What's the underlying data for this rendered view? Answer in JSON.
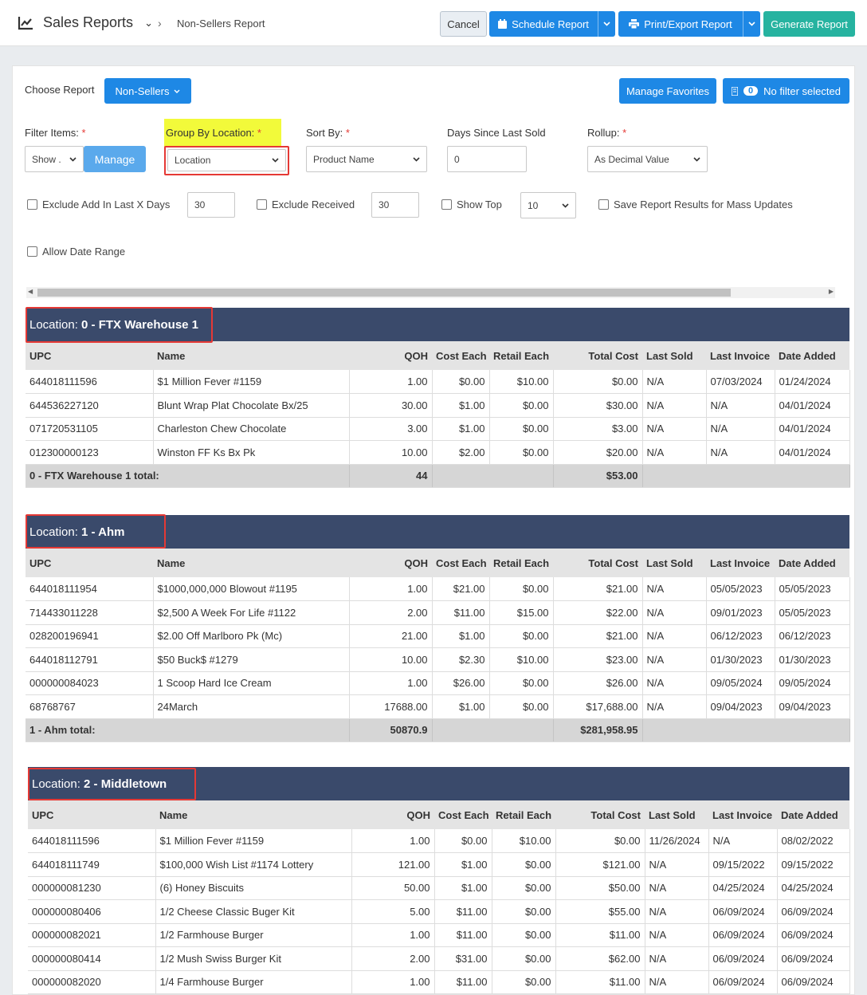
{
  "header": {
    "title": "Sales Reports",
    "breadcrumb": "Non-Sellers Report",
    "cancel": "Cancel",
    "schedule": "Schedule Report",
    "print": "Print/Export Report",
    "generate": "Generate Report"
  },
  "controls": {
    "choose_report_label": "Choose Report",
    "report_value": "Non-Sellers",
    "manage_favorites": "Manage Favorites",
    "filter_count": "0",
    "filter_text": "No filter selected",
    "filter_items_label": "Filter Items:",
    "filter_items_value": "Show .",
    "manage_button": "Manage",
    "group_by_label": "Group By Location:",
    "group_by_value": "Location",
    "sort_by_label": "Sort By:",
    "sort_by_value": "Product Name",
    "days_label": "Days Since Last Sold",
    "days_value": "0",
    "rollup_label": "Rollup:",
    "rollup_value": "As Decimal Value",
    "required_mark": "*",
    "exclude_add_label": "Exclude Add In Last X Days",
    "exclude_add_value": "30",
    "exclude_received_label": "Exclude Received",
    "exclude_received_value": "30",
    "show_top_label": "Show Top",
    "show_top_value": "10",
    "save_results_label": "Save Report Results for Mass Updates",
    "allow_date_range_label": "Allow Date Range"
  },
  "columns": [
    "UPC",
    "Name",
    "QOH",
    "Cost Each",
    "Retail Each",
    "Total Cost",
    "Last Sold",
    "Last Invoice",
    "Date Added"
  ],
  "groups": [
    {
      "prefix": "Location: ",
      "name": "0 - FTX Warehouse 1",
      "rows": [
        [
          "644018111596",
          "$1 Million Fever #1159",
          "1.00",
          "$0.00",
          "$10.00",
          "$0.00",
          "N/A",
          "07/03/2024",
          "01/24/2024"
        ],
        [
          "644536227120",
          "Blunt Wrap Plat Chocolate Bx/25",
          "30.00",
          "$1.00",
          "$0.00",
          "$30.00",
          "N/A",
          "N/A",
          "04/01/2024"
        ],
        [
          "071720531105",
          "Charleston Chew Chocolate",
          "3.00",
          "$1.00",
          "$0.00",
          "$3.00",
          "N/A",
          "N/A",
          "04/01/2024"
        ],
        [
          "012300000123",
          "Winston FF Ks Bx Pk",
          "10.00",
          "$2.00",
          "$0.00",
          "$20.00",
          "N/A",
          "N/A",
          "04/01/2024"
        ]
      ],
      "total_label": "0 - FTX Warehouse 1 total:",
      "total_qoh": "44",
      "total_cost": "$53.00"
    },
    {
      "prefix": "Location: ",
      "name": "1 - Ahm",
      "rows": [
        [
          "644018111954",
          "$1000,000,000 Blowout #1195",
          "1.00",
          "$21.00",
          "$0.00",
          "$21.00",
          "N/A",
          "05/05/2023",
          "05/05/2023"
        ],
        [
          "714433011228",
          "$2,500 A Week For Life #1122",
          "2.00",
          "$11.00",
          "$15.00",
          "$22.00",
          "N/A",
          "09/01/2023",
          "05/05/2023"
        ],
        [
          "028200196941",
          "$2.00 Off Marlboro Pk (Mc)",
          "21.00",
          "$1.00",
          "$0.00",
          "$21.00",
          "N/A",
          "06/12/2023",
          "06/12/2023"
        ],
        [
          "644018112791",
          "$50 Buck$ #1279",
          "10.00",
          "$2.30",
          "$10.00",
          "$23.00",
          "N/A",
          "01/30/2023",
          "01/30/2023"
        ],
        [
          "000000084023",
          "1 Scoop Hard Ice Cream",
          "1.00",
          "$26.00",
          "$0.00",
          "$26.00",
          "N/A",
          "09/05/2024",
          "09/05/2024"
        ],
        [
          "68768767",
          "24March",
          "17688.00",
          "$1.00",
          "$0.00",
          "$17,688.00",
          "N/A",
          "09/04/2023",
          "09/04/2023"
        ]
      ],
      "total_label": "1 - Ahm total:",
      "total_qoh": "50870.9",
      "total_cost": "$281,958.95"
    },
    {
      "prefix": "Location: ",
      "name": "2 - Middletown",
      "rows": [
        [
          "644018111596",
          "$1 Million Fever #1159",
          "1.00",
          "$0.00",
          "$10.00",
          "$0.00",
          "11/26/2024",
          "N/A",
          "08/02/2022"
        ],
        [
          "644018111749",
          "$100,000 Wish List #1174 Lottery",
          "121.00",
          "$1.00",
          "$0.00",
          "$121.00",
          "N/A",
          "09/15/2022",
          "09/15/2022"
        ],
        [
          "000000081230",
          "(6) Honey Biscuits",
          "50.00",
          "$1.00",
          "$0.00",
          "$50.00",
          "N/A",
          "04/25/2024",
          "04/25/2024"
        ],
        [
          "000000080406",
          "1/2 Cheese Classic Buger Kit",
          "5.00",
          "$11.00",
          "$0.00",
          "$55.00",
          "N/A",
          "06/09/2024",
          "06/09/2024"
        ],
        [
          "000000082021",
          "1/2 Farmhouse Burger",
          "1.00",
          "$11.00",
          "$0.00",
          "$11.00",
          "N/A",
          "06/09/2024",
          "06/09/2024"
        ],
        [
          "000000080414",
          "1/2 Mush Swiss Burger Kit",
          "2.00",
          "$31.00",
          "$0.00",
          "$62.00",
          "N/A",
          "06/09/2024",
          "06/09/2024"
        ],
        [
          "000000082020",
          "1/4 Farmhouse Burger",
          "1.00",
          "$11.00",
          "$0.00",
          "$11.00",
          "N/A",
          "06/09/2024",
          "06/09/2024"
        ]
      ]
    }
  ]
}
